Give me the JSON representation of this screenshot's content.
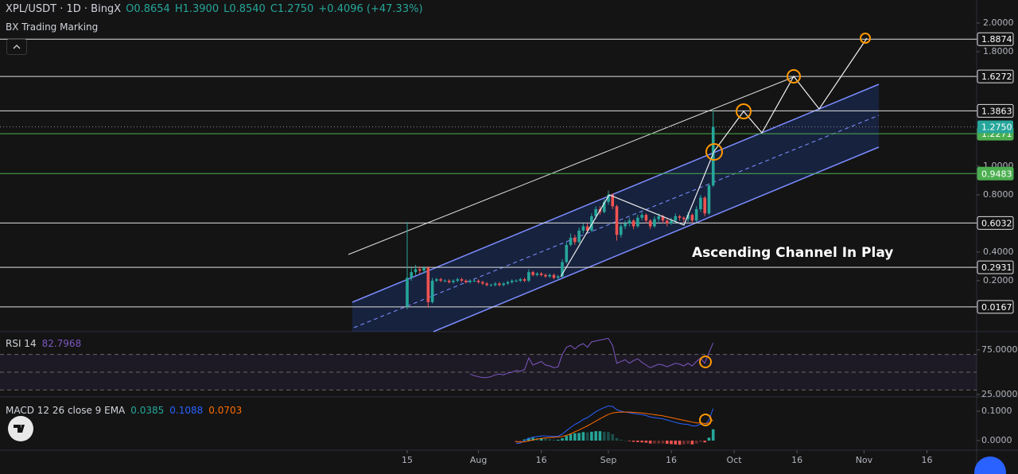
{
  "header": {
    "symbol": "XPL/USDT · 1D · BingX",
    "ohlc": [
      "O0.8654",
      "H1.3900",
      "L0.8540",
      "C1.2750"
    ],
    "change": "+0.4096 (+47.33%)",
    "indicator": "BX Trading Marking"
  },
  "annotation": "Ascending Channel In Play",
  "chart_data": [
    {
      "type": "candlestick",
      "up_color": "#26a69a",
      "down_color": "#ef5350",
      "open": [
        0.02,
        0.22,
        0.26,
        0.28,
        0.27,
        0.29,
        0.05,
        0.2,
        0.21,
        0.2,
        0.2,
        0.19,
        0.2,
        0.21,
        0.2,
        0.19,
        0.2,
        0.2,
        0.19,
        0.18,
        0.17,
        0.17,
        0.18,
        0.17,
        0.18,
        0.19,
        0.2,
        0.2,
        0.21,
        0.2,
        0.26,
        0.24,
        0.25,
        0.24,
        0.23,
        0.24,
        0.22,
        0.23,
        0.33,
        0.45,
        0.5,
        0.47,
        0.55,
        0.58,
        0.55,
        0.65,
        0.7,
        0.68,
        0.75,
        0.8,
        0.72,
        0.52,
        0.58,
        0.6,
        0.62,
        0.58,
        0.64,
        0.66,
        0.62,
        0.58,
        0.63,
        0.65,
        0.62,
        0.6,
        0.62,
        0.65,
        0.64,
        0.63,
        0.66,
        0.62,
        0.7,
        0.78,
        0.67,
        0.8654
      ],
      "high": [
        0.61,
        0.3,
        0.31,
        0.3,
        0.3,
        0.3,
        0.22,
        0.22,
        0.22,
        0.21,
        0.21,
        0.21,
        0.22,
        0.22,
        0.21,
        0.21,
        0.21,
        0.21,
        0.2,
        0.19,
        0.18,
        0.19,
        0.19,
        0.19,
        0.2,
        0.21,
        0.21,
        0.22,
        0.22,
        0.28,
        0.27,
        0.26,
        0.26,
        0.25,
        0.25,
        0.25,
        0.24,
        0.35,
        0.47,
        0.53,
        0.52,
        0.57,
        0.6,
        0.6,
        0.67,
        0.72,
        0.72,
        0.77,
        0.83,
        0.81,
        0.73,
        0.6,
        0.62,
        0.64,
        0.63,
        0.66,
        0.68,
        0.67,
        0.63,
        0.65,
        0.67,
        0.66,
        0.63,
        0.64,
        0.67,
        0.66,
        0.65,
        0.68,
        0.67,
        0.72,
        0.8,
        0.79,
        0.88,
        1.39
      ],
      "low": [
        0.0,
        0.2,
        0.24,
        0.25,
        0.25,
        0.01,
        0.04,
        0.19,
        0.19,
        0.19,
        0.18,
        0.18,
        0.19,
        0.19,
        0.18,
        0.18,
        0.19,
        0.18,
        0.17,
        0.16,
        0.16,
        0.16,
        0.16,
        0.16,
        0.17,
        0.18,
        0.19,
        0.19,
        0.19,
        0.19,
        0.23,
        0.23,
        0.23,
        0.22,
        0.22,
        0.21,
        0.21,
        0.22,
        0.32,
        0.44,
        0.45,
        0.46,
        0.53,
        0.53,
        0.54,
        0.63,
        0.66,
        0.67,
        0.73,
        0.7,
        0.48,
        0.5,
        0.56,
        0.58,
        0.56,
        0.57,
        0.62,
        0.6,
        0.56,
        0.57,
        0.61,
        0.6,
        0.58,
        0.59,
        0.6,
        0.62,
        0.61,
        0.61,
        0.6,
        0.61,
        0.68,
        0.65,
        0.66,
        0.854
      ],
      "close": [
        0.22,
        0.26,
        0.28,
        0.27,
        0.29,
        0.05,
        0.2,
        0.21,
        0.2,
        0.2,
        0.19,
        0.2,
        0.21,
        0.2,
        0.19,
        0.2,
        0.2,
        0.19,
        0.18,
        0.17,
        0.17,
        0.18,
        0.17,
        0.18,
        0.19,
        0.2,
        0.2,
        0.21,
        0.2,
        0.26,
        0.24,
        0.25,
        0.24,
        0.23,
        0.24,
        0.22,
        0.23,
        0.33,
        0.45,
        0.5,
        0.47,
        0.55,
        0.58,
        0.55,
        0.65,
        0.7,
        0.68,
        0.75,
        0.8,
        0.72,
        0.52,
        0.58,
        0.6,
        0.62,
        0.58,
        0.64,
        0.66,
        0.62,
        0.58,
        0.63,
        0.65,
        0.62,
        0.6,
        0.62,
        0.65,
        0.64,
        0.63,
        0.66,
        0.62,
        0.7,
        0.78,
        0.67,
        0.8654,
        1.275
      ],
      "xlim": [
        -97.15,
        135.86
      ],
      "xticks": [
        {
          "value": 0,
          "label": "15"
        },
        {
          "value": 17,
          "label": "Aug"
        },
        {
          "value": 32,
          "label": "16"
        },
        {
          "value": 48,
          "label": "Sep"
        },
        {
          "value": 63,
          "label": "16"
        },
        {
          "value": 78,
          "label": "Oct"
        },
        {
          "value": 93,
          "label": "16"
        },
        {
          "value": 109,
          "label": "Nov"
        },
        {
          "value": 124,
          "label": "16"
        }
      ],
      "ylim": [
        -0.156,
        2.161
      ],
      "yticks": [
        {
          "value": 2,
          "label": "2.0000"
        },
        {
          "value": 1.8,
          "label": "1.8000"
        },
        {
          "value": 1,
          "label": "1.0000"
        },
        {
          "value": 0.8,
          "label": "0.8000"
        },
        {
          "value": 0.4,
          "label": "0.4000"
        },
        {
          "value": 0.2,
          "label": "0.2000"
        }
      ],
      "levels": [
        {
          "value": 1.8874,
          "color": "#e0e0e0"
        },
        {
          "value": 1.6272,
          "color": "#e0e0e0"
        },
        {
          "value": 1.3863,
          "color": "#e0e0e0"
        },
        {
          "value": 1.2271,
          "color": "#4caf50"
        },
        {
          "value": 0.9483,
          "color": "#4caf50"
        },
        {
          "value": 0.6032,
          "color": "#e0e0e0"
        },
        {
          "value": 0.2931,
          "color": "#e0e0e0"
        },
        {
          "value": 0.0167,
          "color": "#e0e0e0"
        }
      ],
      "last_price": {
        "value": 1.275,
        "label": "1.2750"
      }
    },
    {
      "type": "line",
      "title": "RSI 14",
      "color": "#7e57c2",
      "values": [
        null,
        null,
        null,
        null,
        null,
        null,
        null,
        null,
        null,
        null,
        null,
        null,
        null,
        null,
        null,
        48,
        46,
        45,
        44,
        44,
        45,
        47,
        48,
        47,
        49,
        50,
        52,
        51,
        53,
        66,
        58,
        60,
        62,
        58,
        57,
        55,
        56,
        70,
        78,
        80,
        76,
        80,
        82,
        78,
        84,
        85,
        86,
        87,
        88,
        80,
        60,
        62,
        64,
        60,
        63,
        65,
        61,
        58,
        55,
        57,
        59,
        58,
        56,
        58,
        60,
        59,
        57,
        60,
        57,
        62,
        66,
        60,
        72,
        82.7968
      ],
      "ylim": [
        22.3,
        95.5
      ],
      "yticks": [
        {
          "value": 75,
          "label": "75.0000"
        },
        {
          "value": 25,
          "label": "25.0000"
        }
      ],
      "band_levels": [
        70,
        50,
        30
      ]
    },
    {
      "type": "macd",
      "title": "MACD 12 26 close 9 EMA",
      "series": [
        {
          "color": "#26a69a",
          "negative_color": "#ef5350",
          "style": "histogram",
          "values": [
            null,
            null,
            null,
            null,
            null,
            null,
            null,
            null,
            null,
            null,
            null,
            null,
            null,
            null,
            null,
            null,
            null,
            null,
            null,
            null,
            null,
            null,
            null,
            null,
            null,
            null,
            -0.006,
            -0.003,
            0.004,
            0.009,
            0.01,
            0.009,
            0.009,
            0.007,
            0.005,
            0.003,
            0.003,
            0.008,
            0.016,
            0.022,
            0.025,
            0.026,
            0.029,
            0.028,
            0.03,
            0.032,
            0.032,
            0.03,
            0.029,
            0.022,
            0.009,
            0.003,
            0.0,
            -0.002,
            -0.004,
            -0.005,
            -0.006,
            -0.007,
            -0.01,
            -0.01,
            -0.01,
            -0.01,
            -0.011,
            -0.012,
            -0.013,
            -0.014,
            -0.013,
            -0.011,
            -0.013,
            -0.01,
            -0.004,
            -0.006,
            0.01,
            0.0385
          ]
        },
        {
          "color": "#2962ff",
          "style": "line",
          "values": [
            null,
            null,
            null,
            null,
            null,
            null,
            null,
            null,
            null,
            null,
            null,
            null,
            null,
            null,
            null,
            null,
            null,
            null,
            null,
            null,
            null,
            null,
            null,
            null,
            null,
            null,
            -0.01,
            -0.008,
            0.0,
            0.008,
            0.012,
            0.014,
            0.016,
            0.016,
            0.015,
            0.014,
            0.015,
            0.022,
            0.034,
            0.045,
            0.055,
            0.062,
            0.072,
            0.078,
            0.088,
            0.098,
            0.106,
            0.112,
            0.118,
            0.116,
            0.105,
            0.1,
            0.097,
            0.095,
            0.092,
            0.09,
            0.088,
            0.085,
            0.08,
            0.078,
            0.076,
            0.074,
            0.07,
            0.066,
            0.062,
            0.058,
            0.056,
            0.055,
            0.05,
            0.05,
            0.056,
            0.052,
            0.07,
            0.1088
          ]
        },
        {
          "color": "#ff6d00",
          "style": "line",
          "values": [
            null,
            null,
            null,
            null,
            null,
            null,
            null,
            null,
            null,
            null,
            null,
            null,
            null,
            null,
            null,
            null,
            null,
            null,
            null,
            null,
            null,
            null,
            null,
            null,
            null,
            null,
            -0.004,
            -0.005,
            -0.004,
            -0.001,
            0.002,
            0.005,
            0.007,
            0.009,
            0.01,
            0.011,
            0.012,
            0.014,
            0.018,
            0.023,
            0.03,
            0.036,
            0.043,
            0.05,
            0.058,
            0.066,
            0.074,
            0.082,
            0.089,
            0.094,
            0.096,
            0.097,
            0.097,
            0.097,
            0.096,
            0.095,
            0.094,
            0.092,
            0.09,
            0.088,
            0.086,
            0.084,
            0.081,
            0.078,
            0.075,
            0.072,
            0.069,
            0.066,
            0.063,
            0.06,
            0.06,
            0.058,
            0.06,
            0.0703
          ]
        }
      ],
      "ylim": [
        -0.0324,
        0.1486
      ],
      "yticks": [
        {
          "value": 0.1,
          "label": "0.1000"
        },
        {
          "value": 0,
          "label": "0.0000"
        }
      ]
    }
  ]
}
